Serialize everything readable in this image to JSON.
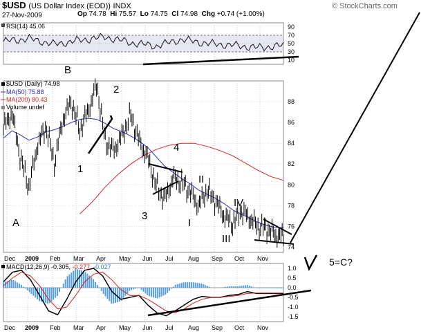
{
  "header": {
    "symbol": "$USD",
    "name": "(US Dollar Index (EOD))",
    "exchange": "INDX",
    "date": "27-Nov-2009",
    "open_label": "Op",
    "open": "74.78",
    "high_label": "Hi",
    "high": "75.57",
    "low_label": "Lo",
    "low": "74.75",
    "close_label": "Cl",
    "close": "74.98",
    "change_label": "Chg",
    "change": "+0.74 (+1.00%)",
    "brand": "© StockCharts.com"
  },
  "colors": {
    "price": "#000000",
    "ma50": "#2b2bc8",
    "ma200": "#d92323",
    "rsi_band": "#c9cbe6",
    "macd_hist": "#5aa0d8",
    "annotation": "#000000"
  },
  "chart_data": [
    {
      "type": "line",
      "panel": "RSI",
      "legend": "RSI(14) 45.06",
      "ylim": [
        0,
        100
      ],
      "y_ticks": [
        "90",
        "70",
        "50",
        "30",
        "10"
      ],
      "x": [
        "Dec",
        "Jan",
        "Feb",
        "Mar",
        "Apr",
        "May",
        "Jun",
        "Jul",
        "Aug",
        "Sep",
        "Oct",
        "Nov"
      ],
      "values": [
        55,
        62,
        48,
        58,
        66,
        52,
        44,
        60,
        50,
        46,
        40,
        45
      ]
    },
    {
      "type": "line",
      "panel": "Price",
      "legend": [
        "$USD (Daily) 74.98",
        "MA(50) 75.88",
        "MA(200) 80.43",
        "Volume undef"
      ],
      "ylim": [
        73.5,
        90
      ],
      "y_ticks": [
        "88",
        "86",
        "84",
        "82",
        "80",
        "78",
        "76",
        "74"
      ],
      "x_ticks": [
        "Dec",
        "2009",
        "Feb",
        "Mar",
        "Apr",
        "May",
        "Jun",
        "Jul",
        "Aug",
        "Sep",
        "Oct",
        "Nov"
      ],
      "series": [
        {
          "name": "$USD (Daily)",
          "values": [
            85.5,
            86.9,
            82.6,
            79.8,
            83.8,
            85.6,
            82.1,
            86.3,
            88.0,
            85.3,
            87.2,
            89.6,
            84.2,
            83.3,
            84.8,
            86.7,
            84.2,
            82.6,
            79.9,
            78.6,
            80.7,
            80.2,
            79.3,
            78.0,
            79.5,
            78.4,
            77.0,
            76.3,
            77.5,
            76.8,
            76.0,
            75.8,
            75.2,
            74.98
          ]
        },
        {
          "name": "MA(50)",
          "values": [
            84.5,
            85.2,
            84.8,
            84.3,
            84.6,
            85.1,
            85.3,
            85.6,
            86.0,
            86.3,
            86.4,
            86.3,
            85.9,
            85.4,
            85.1,
            84.7,
            84.2,
            83.6,
            82.7,
            81.8,
            81.2,
            80.6,
            80.1,
            79.5,
            79.1,
            78.7,
            78.2,
            77.6,
            77.2,
            76.8,
            76.4,
            76.1,
            75.9,
            75.88
          ]
        },
        {
          "name": "MA(200)",
          "values": [
            null,
            null,
            null,
            null,
            null,
            null,
            77.2,
            78.4,
            79.8,
            81.0,
            82.0,
            82.8,
            83.4,
            83.8,
            84.0,
            84.0,
            83.7,
            83.3,
            82.8,
            82.1,
            81.4,
            80.8,
            80.43
          ]
        }
      ]
    },
    {
      "type": "line",
      "panel": "MACD",
      "legend_label": "MACD(12,26,9)",
      "macd": "-0.305",
      "signal": "-0.277",
      "hist": "-0.027",
      "ylim": [
        -1.75,
        1.25
      ],
      "y_ticks": [
        "1.0",
        "0.5",
        "0.0",
        "-0.5",
        "-1.0",
        "-1.5"
      ],
      "x_ticks": [
        "Dec",
        "2009",
        "Feb",
        "Mar",
        "Apr",
        "May",
        "Jun",
        "Jul",
        "Aug",
        "Sep",
        "Oct",
        "Nov"
      ],
      "series": [
        {
          "name": "MACD",
          "values": [
            0.3,
            0.8,
            0.9,
            0.4,
            -0.4,
            -1.2,
            -1.4,
            -0.6,
            0.3,
            0.9,
            1.0,
            0.6,
            -0.2,
            -0.6,
            -0.5,
            -0.4,
            -0.9,
            -1.3,
            -1.45,
            -1.2,
            -0.9,
            -0.6,
            -0.45,
            -0.5,
            -0.5,
            -0.4,
            -0.35,
            -0.2,
            -0.3,
            -0.3,
            -0.3,
            -0.305
          ]
        },
        {
          "name": "Signal",
          "values": [
            0.1,
            0.5,
            0.8,
            0.6,
            0.1,
            -0.6,
            -1.1,
            -1.0,
            -0.4,
            0.3,
            0.7,
            0.8,
            0.4,
            -0.1,
            -0.4,
            -0.4,
            -0.6,
            -0.9,
            -1.2,
            -1.3,
            -1.1,
            -0.8,
            -0.6,
            -0.5,
            -0.5,
            -0.45,
            -0.4,
            -0.3,
            -0.28,
            -0.28,
            -0.28,
            -0.277
          ]
        }
      ]
    }
  ],
  "annotations": {
    "rsi_letter": "B",
    "price_labels": [
      "2",
      "4",
      "1",
      "3",
      "A",
      "II",
      "I",
      "IV",
      "III"
    ],
    "right_labels": [
      "V",
      "5=C?"
    ]
  }
}
